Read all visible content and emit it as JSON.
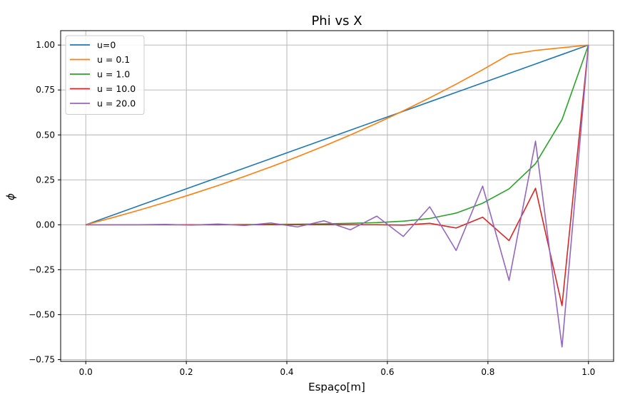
{
  "chart_data": {
    "type": "line",
    "title": "Phi vs X",
    "xlabel": "Espaço[m]",
    "ylabel": "ϕ",
    "xlim": [
      -0.05,
      1.05
    ],
    "ylim": [
      -0.76,
      1.08
    ],
    "xticks": [
      0.0,
      0.2,
      0.4,
      0.6,
      0.8,
      1.0
    ],
    "xtick_labels": [
      "0.0",
      "0.2",
      "0.4",
      "0.6",
      "0.8",
      "1.0"
    ],
    "yticks": [
      -0.75,
      -0.5,
      -0.25,
      0.0,
      0.25,
      0.5,
      0.75,
      1.0
    ],
    "ytick_labels": [
      "−0.75",
      "−0.50",
      "−0.25",
      "0.00",
      "0.25",
      "0.50",
      "0.75",
      "1.00"
    ],
    "grid": true,
    "legend_position": "top-left",
    "x": [
      0.0,
      0.0526,
      0.1053,
      0.1579,
      0.2105,
      0.2632,
      0.3158,
      0.3684,
      0.4211,
      0.4737,
      0.5263,
      0.5789,
      0.6316,
      0.6842,
      0.7368,
      0.7895,
      0.8421,
      0.8947,
      0.9474,
      1.0
    ],
    "series": [
      {
        "name": "u=0",
        "color": "#1f77b4",
        "values": [
          0.0,
          0.0526,
          0.1053,
          0.1579,
          0.2105,
          0.2632,
          0.3158,
          0.3684,
          0.4211,
          0.4737,
          0.5263,
          0.5789,
          0.6316,
          0.6842,
          0.7368,
          0.7895,
          0.8421,
          0.8947,
          0.9474,
          1.0
        ]
      },
      {
        "name": "u = 0.1",
        "color": "#ff7f0e",
        "values": [
          0.0,
          0.0393,
          0.0807,
          0.1243,
          0.1701,
          0.2183,
          0.269,
          0.3224,
          0.3785,
          0.4375,
          0.4997,
          0.565,
          0.6338,
          0.7062,
          0.7824,
          0.8625,
          0.9469,
          0.97,
          0.985,
          1.0
        ]
      },
      {
        "name": "u = 1.0",
        "color": "#2ca02c",
        "values": [
          0.0,
          0.0,
          0.0,
          0.0,
          0.0,
          0.0,
          0.001,
          0.002,
          0.003,
          0.005,
          0.008,
          0.012,
          0.02,
          0.035,
          0.065,
          0.12,
          0.2,
          0.34,
          0.585,
          1.0
        ]
      },
      {
        "name": "u = 10.0",
        "color": "#d62728",
        "values": [
          0.0,
          0.0,
          0.0,
          0.0,
          0.0,
          0.0,
          0.0,
          0.0,
          0.0,
          0.0,
          0.0,
          0.0,
          -0.002,
          0.008,
          -0.018,
          0.042,
          -0.088,
          0.203,
          -0.45,
          1.0
        ]
      },
      {
        "name": "u = 20.0",
        "color": "#9467bd",
        "values": [
          0.0,
          0.0,
          0.0,
          0.002,
          -0.002,
          0.004,
          -0.004,
          0.01,
          -0.012,
          0.022,
          -0.028,
          0.048,
          -0.065,
          0.1,
          -0.143,
          0.215,
          -0.31,
          0.465,
          -0.68,
          1.0
        ]
      }
    ]
  }
}
